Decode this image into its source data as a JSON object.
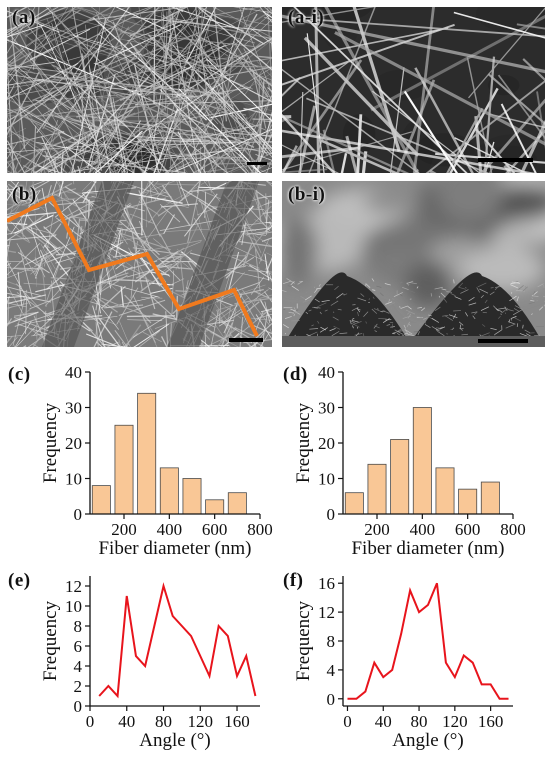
{
  "panels": {
    "a": "(a)",
    "a_i": "(a-i)",
    "b": "(b)",
    "b_i": "(b-i)",
    "c": "(c)",
    "d": "(d)",
    "e": "(e)",
    "f": "(f)"
  },
  "colors": {
    "bar_fill": "#f9c796",
    "bar_stroke": "#4a4a4a",
    "line": "#e8141c",
    "path_overlay": "#f07a1e"
  },
  "chart_data": [
    {
      "id": "c",
      "type": "bar",
      "xlabel": "Fiber diameter (nm)",
      "ylabel": "Frequency",
      "x": [
        100,
        200,
        300,
        400,
        500,
        600,
        700
      ],
      "values": [
        8,
        25,
        34,
        13,
        10,
        4,
        6
      ],
      "xlim": [
        50,
        800
      ],
      "ylim": [
        0,
        40
      ],
      "xticks": [
        "200",
        "400",
        "600",
        "800"
      ],
      "xtick_values": [
        200,
        400,
        600,
        800
      ],
      "yticks": [
        "0",
        "10",
        "20",
        "30",
        "40"
      ],
      "ytick_values": [
        0,
        10,
        20,
        30,
        40
      ]
    },
    {
      "id": "d",
      "type": "bar",
      "xlabel": "Fiber diameter (nm)",
      "ylabel": "Frequency",
      "x": [
        100,
        200,
        300,
        400,
        500,
        600,
        700
      ],
      "values": [
        6,
        14,
        21,
        30,
        13,
        7,
        9
      ],
      "xlim": [
        50,
        800
      ],
      "ylim": [
        0,
        40
      ],
      "xticks": [
        "200",
        "400",
        "600",
        "800"
      ],
      "xtick_values": [
        200,
        400,
        600,
        800
      ],
      "yticks": [
        "0",
        "10",
        "20",
        "30",
        "40"
      ],
      "ytick_values": [
        0,
        10,
        20,
        30,
        40
      ]
    },
    {
      "id": "e",
      "type": "line",
      "xlabel": "Angle (°)",
      "ylabel": "Frequency",
      "x": [
        10,
        20,
        30,
        40,
        50,
        60,
        70,
        80,
        90,
        100,
        110,
        120,
        130,
        140,
        150,
        160,
        170,
        180
      ],
      "values": [
        1,
        2,
        1,
        11,
        5,
        4,
        8,
        12,
        9,
        8,
        7,
        5,
        3,
        8,
        7,
        3,
        5,
        1
      ],
      "xlim": [
        0,
        185
      ],
      "ylim": [
        0,
        13
      ],
      "xticks": [
        "0",
        "40",
        "80",
        "120",
        "160"
      ],
      "xtick_values": [
        0,
        40,
        80,
        120,
        160
      ],
      "yticks": [
        "0",
        "2",
        "4",
        "6",
        "8",
        "10",
        "12"
      ],
      "ytick_values": [
        0,
        2,
        4,
        6,
        8,
        10,
        12
      ]
    },
    {
      "id": "f",
      "type": "line",
      "xlabel": "Angle (°)",
      "ylabel": "Frequency",
      "x": [
        0,
        10,
        20,
        30,
        40,
        50,
        60,
        70,
        80,
        90,
        100,
        110,
        120,
        130,
        140,
        150,
        160,
        170,
        180
      ],
      "values": [
        0,
        0,
        1,
        5,
        3,
        4,
        9,
        15,
        12,
        13,
        16,
        5,
        3,
        6,
        5,
        2,
        2,
        0,
        0
      ],
      "xlim": [
        -5,
        185
      ],
      "ylim": [
        -1,
        17
      ],
      "xticks": [
        "0",
        "40",
        "80",
        "120",
        "160"
      ],
      "xtick_values": [
        0,
        40,
        80,
        120,
        160
      ],
      "yticks": [
        "0",
        "4",
        "8",
        "12",
        "16"
      ],
      "ytick_values": [
        0,
        4,
        8,
        12,
        16
      ]
    }
  ]
}
